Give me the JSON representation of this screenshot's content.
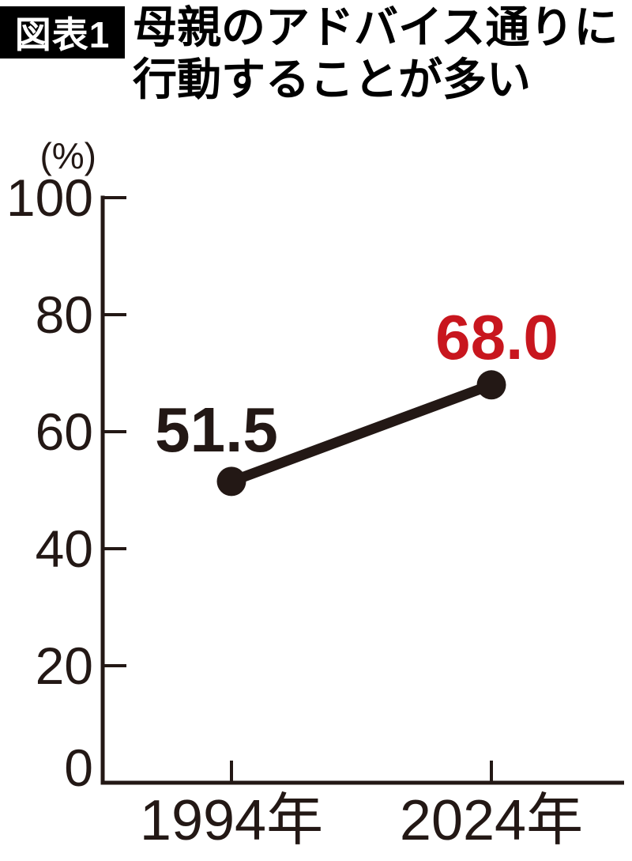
{
  "figure": {
    "tag_label": "図表1",
    "title_line1": "母親のアドバイス通りに",
    "title_line2": "行動することが多い"
  },
  "chart_data": {
    "type": "line",
    "title": "母親のアドバイス通りに行動することが多い",
    "unit_label": "(%)",
    "categories": [
      "1994年",
      "2024年"
    ],
    "series": [
      {
        "name": "母親のアドバイス通りに行動することが多い",
        "values": [
          51.5,
          68.0
        ]
      }
    ],
    "value_labels": [
      "51.5",
      "68.0"
    ],
    "yticks": [
      100,
      80,
      60,
      40,
      20,
      0
    ],
    "ylim": [
      0,
      100
    ],
    "grid": false,
    "legend": false,
    "colors": {
      "ink": "#231815",
      "title_black": "#000000",
      "value_label_1994": "#231815",
      "value_label_2024": "#c8161e"
    }
  }
}
